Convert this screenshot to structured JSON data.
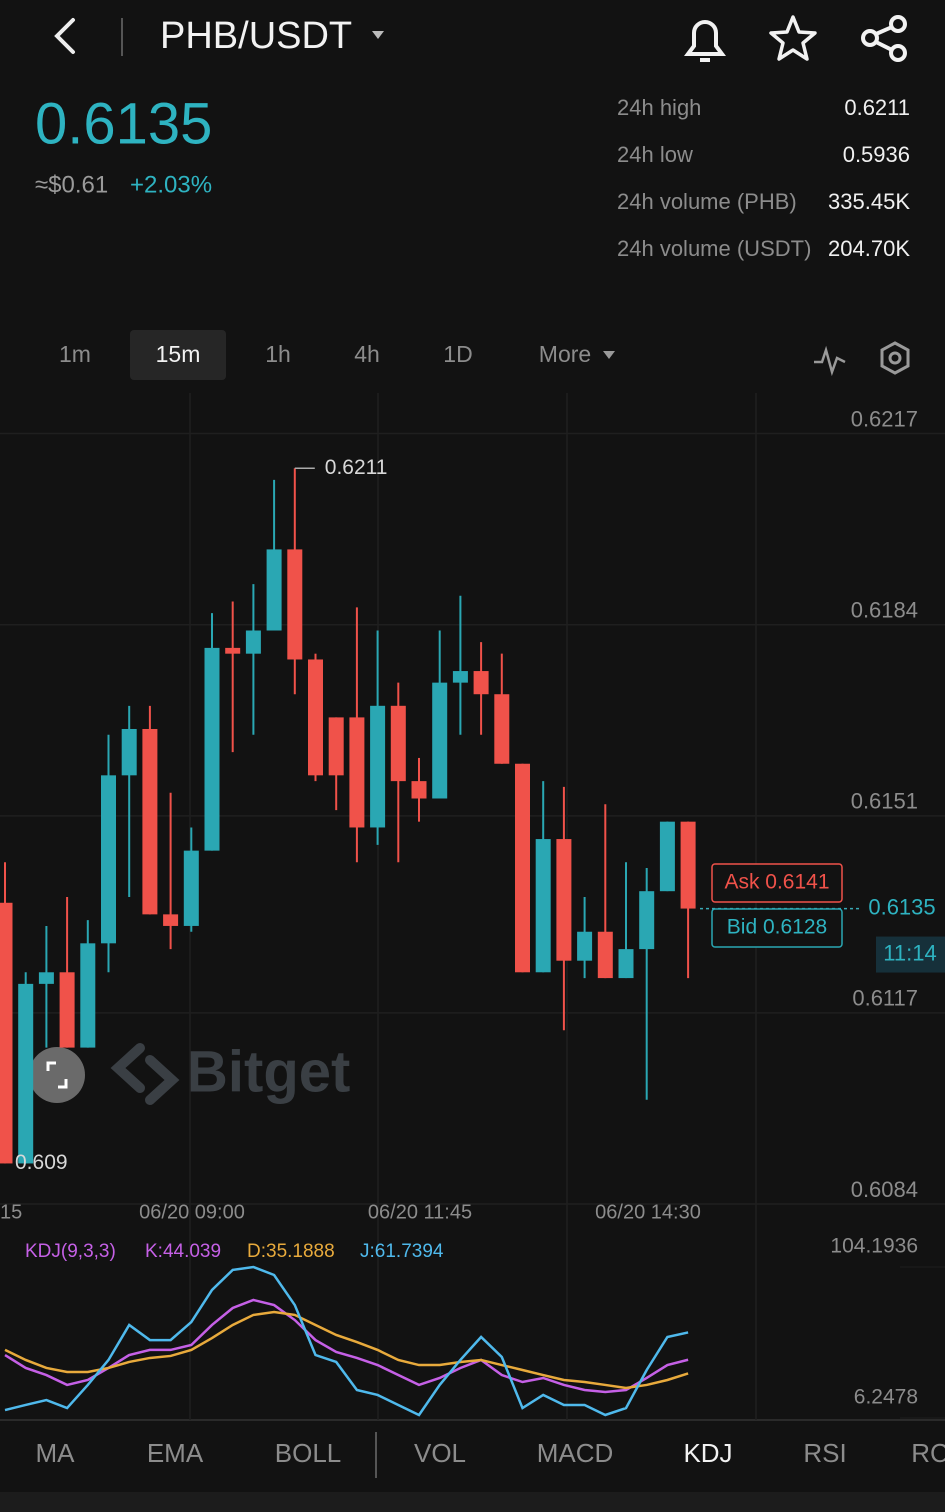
{
  "header": {
    "pair": "PHB/USDT"
  },
  "ticker": {
    "price": "0.6135",
    "usd": "≈$0.61",
    "change": "+2.03%",
    "stats": [
      [
        "24h high",
        "0.6211"
      ],
      [
        "24h low",
        "0.5936"
      ],
      [
        "24h volume (PHB)",
        "335.45K"
      ],
      [
        "24h volume (USDT)",
        "204.70K"
      ]
    ]
  },
  "intervals": [
    "1m",
    "15m",
    "1h",
    "4h",
    "1D",
    "More"
  ],
  "chart_data": {
    "type": "candlestick",
    "open": [
      0.6136,
      0.6091,
      0.6122,
      0.6124,
      0.6111,
      0.6129,
      0.6158,
      0.6166,
      0.6134,
      0.6132,
      0.6145,
      0.618,
      0.6179,
      0.6183,
      0.6197,
      0.6178,
      0.6168,
      0.6168,
      0.6149,
      0.617,
      0.6157,
      0.6154,
      0.6174,
      0.6176,
      0.6172,
      0.616,
      0.6124,
      0.6147,
      0.6126,
      0.6131,
      0.6123,
      0.6128,
      0.6138,
      0.615
    ],
    "high": [
      0.6143,
      0.6124,
      0.6132,
      0.6137,
      0.6133,
      0.6165,
      0.617,
      0.617,
      0.6155,
      0.6149,
      0.6186,
      0.6188,
      0.6191,
      0.6209,
      0.6211,
      0.6179,
      0.6168,
      0.6187,
      0.6183,
      0.6174,
      0.6161,
      0.6183,
      0.6189,
      0.6181,
      0.6179,
      0.616,
      0.6157,
      0.6156,
      0.6137,
      0.6153,
      0.6143,
      0.6142,
      0.615,
      0.615
    ],
    "low": [
      0.6091,
      0.6091,
      0.6111,
      0.6111,
      0.6111,
      0.6124,
      0.6137,
      0.6134,
      0.6128,
      0.6131,
      0.6145,
      0.6162,
      0.6165,
      0.6183,
      0.6172,
      0.6157,
      0.6152,
      0.6143,
      0.6146,
      0.6143,
      0.615,
      0.6154,
      0.6165,
      0.6165,
      0.616,
      0.6124,
      0.6124,
      0.6114,
      0.6123,
      0.6123,
      0.6123,
      0.6102,
      0.6138,
      0.6123
    ],
    "close": [
      0.6091,
      0.6122,
      0.6124,
      0.6111,
      0.6129,
      0.6158,
      0.6166,
      0.6134,
      0.6132,
      0.6145,
      0.618,
      0.6179,
      0.6183,
      0.6197,
      0.6178,
      0.6158,
      0.6158,
      0.6149,
      0.617,
      0.6157,
      0.6154,
      0.6174,
      0.6176,
      0.6172,
      0.616,
      0.6124,
      0.6147,
      0.6126,
      0.6131,
      0.6123,
      0.6128,
      0.6138,
      0.615,
      0.6135
    ],
    "up_color": "#2aa7b3",
    "down_color": "#f0524a",
    "ylim": [
      0.6084,
      0.6224
    ],
    "yticks": [
      0.6217,
      0.6184,
      0.6151,
      0.6117,
      0.6084
    ],
    "time_labels": [
      "15",
      "06/20 09:00",
      "06/20 11:45",
      "06/20 14:30"
    ],
    "high_label": "0.6211",
    "low_label": "0.609",
    "last_price": 0.6135,
    "last_price_label": "0.6135",
    "countdown": "11:14",
    "ask": "Ask 0.6141",
    "bid": "Bid 0.6128",
    "watermark": "Bitget"
  },
  "indicator": {
    "type": "line",
    "title": "KDJ(9,3,3)",
    "ylim": [
      6.2478,
      104.1936
    ],
    "yticks": [
      104.1936,
      6.2478
    ],
    "series": [
      {
        "name": "K:44.039",
        "color": "#c560e6",
        "values": [
          47.1,
          38.7,
          34.1,
          27.7,
          30.9,
          38.7,
          47.1,
          50.4,
          50.4,
          53.6,
          66.6,
          77.6,
          82.8,
          79.5,
          69.8,
          56.8,
          49.1,
          45.2,
          40.6,
          34.1,
          27.7,
          32.2,
          38.7,
          43.9,
          34.1,
          29.6,
          32.2,
          27.7,
          24.4,
          23.1,
          24.4,
          32.2,
          40.6,
          44.039
        ]
      },
      {
        "name": "D:35.1888",
        "color": "#e8aa3c",
        "values": [
          50.4,
          43.9,
          38.7,
          36.1,
          36.1,
          38.7,
          42.6,
          45.2,
          46.5,
          50.4,
          58.1,
          66.6,
          73.1,
          75.0,
          73.1,
          66.6,
          60.1,
          55.5,
          50.4,
          43.9,
          40.6,
          40.6,
          42.6,
          43.9,
          40.6,
          37.4,
          34.1,
          30.9,
          29.6,
          27.7,
          25.7,
          27.7,
          30.9,
          35.1888
        ]
      },
      {
        "name": "J:61.7394",
        "color": "#4fb9ec",
        "values": [
          11.4,
          14.7,
          17.9,
          12.7,
          27.7,
          43.9,
          66.6,
          56.8,
          56.8,
          68.5,
          89.3,
          102.3,
          104.2,
          99.0,
          79.5,
          47.1,
          42.6,
          24.4,
          21.2,
          14.7,
          8.2,
          27.7,
          43.9,
          58.8,
          45.8,
          12.7,
          21.2,
          14.7,
          14.7,
          8.2,
          12.7,
          37.4,
          58.8,
          61.7394
        ]
      }
    ]
  },
  "tabs": [
    "MA",
    "EMA",
    "BOLL",
    "VOL",
    "MACD",
    "KDJ",
    "RSI",
    "RC"
  ]
}
